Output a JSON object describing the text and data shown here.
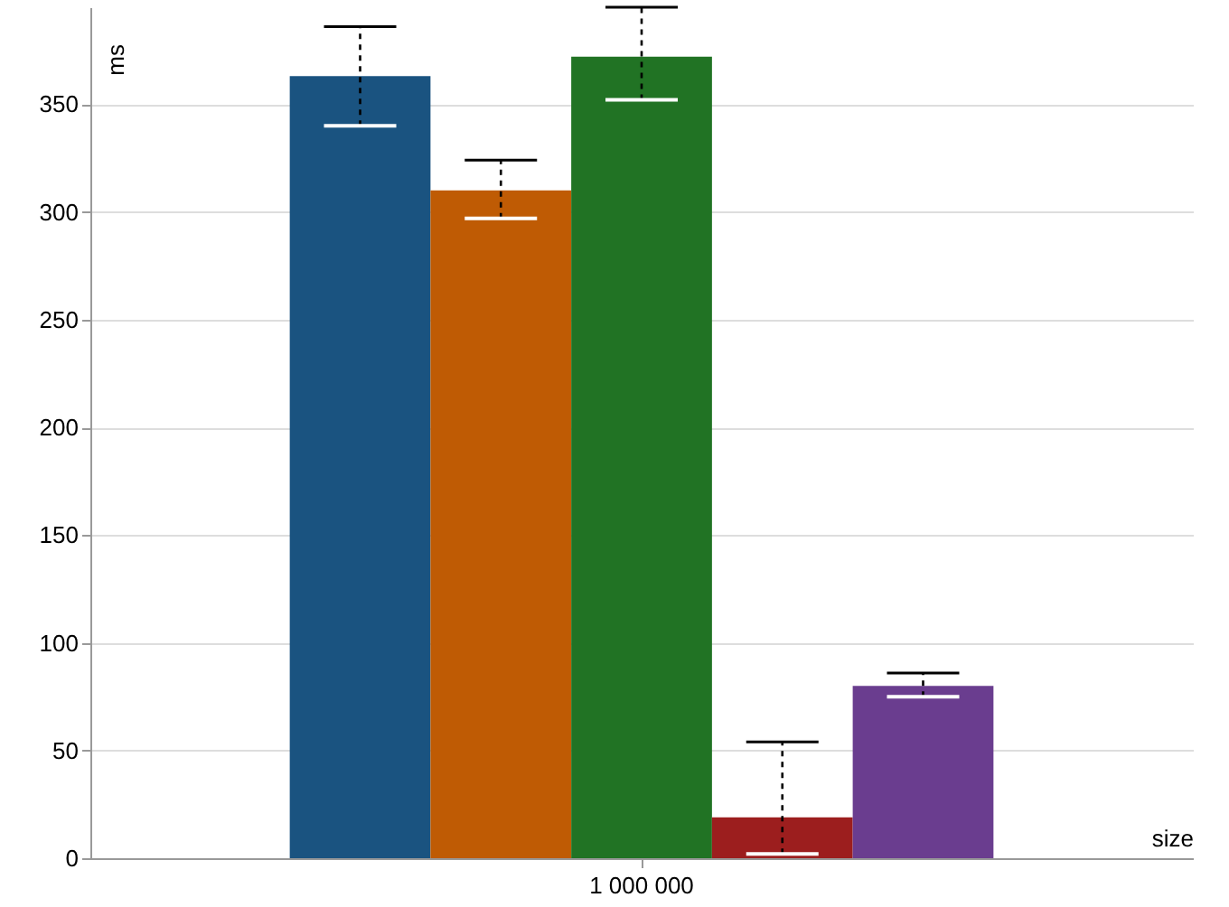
{
  "chart_data": {
    "type": "bar",
    "categories": [
      "1 000 000"
    ],
    "xlabel": "size",
    "ylabel": "ms",
    "ylim": [
      0,
      395
    ],
    "yticks": [
      0,
      50,
      100,
      150,
      200,
      250,
      300,
      350
    ],
    "grid": "y",
    "series": [
      {
        "color": "#1a5380",
        "values": [
          363
        ],
        "errors": [
          [
            340,
            386
          ]
        ]
      },
      {
        "color": "#bf5b04",
        "values": [
          310
        ],
        "errors": [
          [
            297,
            324
          ]
        ]
      },
      {
        "color": "#217324",
        "values": [
          372
        ],
        "errors": [
          [
            352,
            395
          ]
        ]
      },
      {
        "color": "#9c1e1e",
        "values": [
          19
        ],
        "errors": [
          [
            2,
            54
          ]
        ]
      },
      {
        "color": "#6a3d8f",
        "values": [
          80
        ],
        "errors": [
          [
            75,
            86
          ]
        ]
      }
    ]
  }
}
